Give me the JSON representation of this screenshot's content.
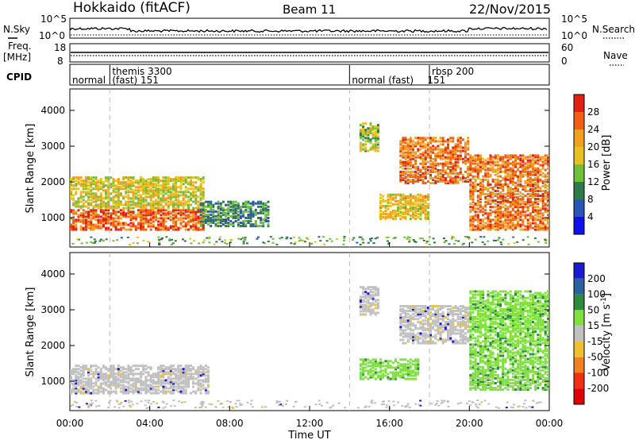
{
  "header": {
    "station": "Hokkaido (fitACF)",
    "beam": "Beam 11",
    "date": "22/Nov/2015"
  },
  "noise_panel": {
    "left_label": "N.Sky",
    "right_label": "N.Search",
    "left_ticks": [
      "10^5",
      "10^0"
    ],
    "right_ticks": [
      "10^5",
      "10^0"
    ]
  },
  "freq_panel": {
    "left_label_1": "Freq.",
    "left_label_2": "[MHz]",
    "left_ticks": [
      "18",
      "8"
    ],
    "right_label": "Nave",
    "right_ticks": [
      "60",
      "0"
    ]
  },
  "cpid_panel": {
    "label": "CPID",
    "segments": [
      {
        "start_hour": 0.0,
        "name": "normal",
        "id": ""
      },
      {
        "start_hour": 2.0,
        "name": "themis 3300",
        "id": "(fast) 151"
      },
      {
        "start_hour": 14.0,
        "name": "normal (fast)",
        "id": "151"
      },
      {
        "start_hour": 18.0,
        "name": "rbsp",
        "id": "200"
      }
    ]
  },
  "power_panel": {
    "ylabel": "Slant Range [km]",
    "yticks": [
      "1000",
      "2000",
      "3000",
      "4000"
    ],
    "colorbar_label": "Power [dB]",
    "colorbar_ticks": [
      "4",
      "8",
      "12",
      "16",
      "20",
      "24",
      "28"
    ],
    "colors": [
      "#1010e8",
      "#2a55b8",
      "#2e7a4a",
      "#6fbf3a",
      "#e8c020",
      "#f0a020",
      "#f06010",
      "#e02010"
    ]
  },
  "velocity_panel": {
    "ylabel": "Slant Range [km]",
    "yticks": [
      "1000",
      "2000",
      "3000",
      "4000"
    ],
    "colorbar_label": "Velocity [m s^-1]",
    "colorbar_ticks": [
      "200",
      "100",
      "50",
      "15",
      "-15",
      "-50",
      "-100",
      "-200"
    ],
    "colors": [
      "#1a1ad0",
      "#2a60a0",
      "#2f8a40",
      "#80e040",
      "#c0c0c0",
      "#f0c030",
      "#f08020",
      "#f03010",
      "#e00000"
    ]
  },
  "xaxis": {
    "label": "Time UT",
    "ticks": [
      "00:00",
      "04:00",
      "08:00",
      "12:00",
      "16:00",
      "20:00",
      "00:00"
    ]
  },
  "chart_data": {
    "type": "heatmap",
    "x_range_hours": [
      0,
      24
    ],
    "y_range_km": [
      180,
      4600
    ],
    "mode_change_hours": [
      2,
      14,
      18
    ],
    "power_echo_regions": [
      {
        "t0": 0.0,
        "t1": 6.8,
        "r0": 700,
        "r1": 1300,
        "level_db": 28
      },
      {
        "t0": 0.0,
        "t1": 6.8,
        "r0": 1300,
        "r1": 2200,
        "level_db": 18
      },
      {
        "t0": 6.5,
        "t1": 10.0,
        "r0": 800,
        "r1": 1500,
        "level_db": 10
      },
      {
        "t0": 14.5,
        "t1": 15.5,
        "r0": 2900,
        "r1": 3700,
        "level_db": 16
      },
      {
        "t0": 15.5,
        "t1": 18.0,
        "r0": 1000,
        "r1": 1700,
        "level_db": 20
      },
      {
        "t0": 16.5,
        "t1": 20.0,
        "r0": 2000,
        "r1": 3300,
        "level_db": 26
      },
      {
        "t0": 20.0,
        "t1": 24.0,
        "r0": 700,
        "r1": 2800,
        "level_db": 26
      }
    ],
    "velocity_echo_regions": [
      {
        "t0": 0.0,
        "t1": 7.0,
        "r0": 700,
        "r1": 1500,
        "velocity": 0
      },
      {
        "t0": 14.5,
        "t1": 15.5,
        "r0": 2900,
        "r1": 3700,
        "velocity": 0
      },
      {
        "t0": 14.5,
        "t1": 17.5,
        "r0": 1100,
        "r1": 1700,
        "velocity": 40
      },
      {
        "t0": 16.5,
        "t1": 20.0,
        "r0": 2100,
        "r1": 3200,
        "velocity": 0
      },
      {
        "t0": 20.0,
        "t1": 24.0,
        "r0": 800,
        "r1": 3600,
        "velocity": 30
      }
    ]
  }
}
